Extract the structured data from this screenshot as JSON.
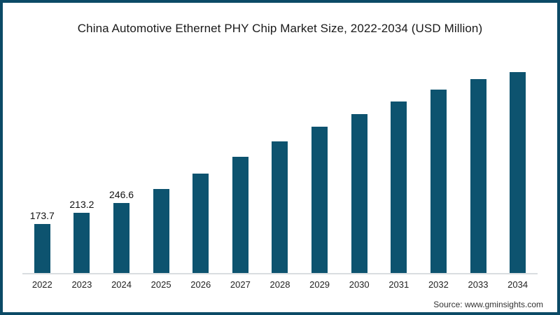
{
  "title": "China Automotive Ethernet PHY Chip Market Size, 2022-2034 (USD Million)",
  "source": "Source: www.gminsights.com",
  "colors": {
    "bar": "#0d536f",
    "frame_border": "#0c4a66",
    "axis_line": "#d9dde0",
    "background": "#ffffff",
    "title_text": "#1a1a1a",
    "value_label_text": "#111111",
    "tick_text": "#222222",
    "source_text": "#333333"
  },
  "chart_data": {
    "type": "bar",
    "title": "China Automotive Ethernet PHY Chip Market Size, 2022-2034 (USD Million)",
    "units": "USD Million",
    "categories": [
      "2022",
      "2023",
      "2024",
      "2025",
      "2026",
      "2027",
      "2028",
      "2029",
      "2030",
      "2031",
      "2032",
      "2033",
      "2034"
    ],
    "values": [
      173.7,
      213.2,
      246.6,
      295,
      349,
      408,
      462,
      511,
      557,
      601,
      641,
      677,
      702
    ],
    "value_labels": [
      "173.7",
      "213.2",
      "246.6",
      "",
      "",
      "",
      "",
      "",
      "",
      "",
      "",
      "",
      ""
    ],
    "xlabel": "",
    "ylabel": "",
    "y_axis_shown": false,
    "gridlines": false,
    "legend_position": "none",
    "bar_color": "#0d536f"
  }
}
